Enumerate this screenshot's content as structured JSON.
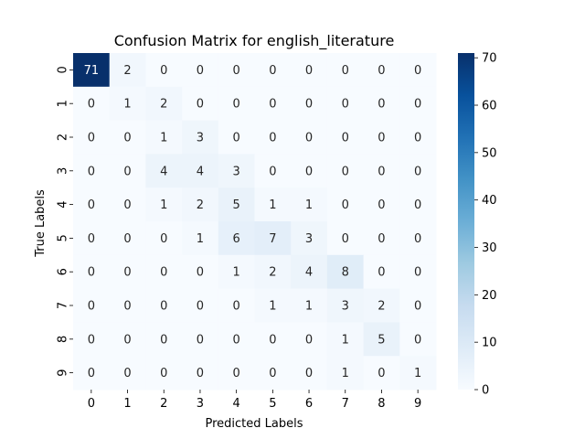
{
  "chart_data": {
    "type": "heatmap",
    "title": "Confusion Matrix for english_literature",
    "xlabel": "Predicted Labels",
    "ylabel": "True Labels",
    "x_categories": [
      "0",
      "1",
      "2",
      "3",
      "4",
      "5",
      "6",
      "7",
      "8",
      "9"
    ],
    "y_categories": [
      "0",
      "1",
      "2",
      "3",
      "4",
      "5",
      "6",
      "7",
      "8",
      "9"
    ],
    "values": [
      [
        71,
        2,
        0,
        0,
        0,
        0,
        0,
        0,
        0,
        0
      ],
      [
        0,
        1,
        2,
        0,
        0,
        0,
        0,
        0,
        0,
        0
      ],
      [
        0,
        0,
        1,
        3,
        0,
        0,
        0,
        0,
        0,
        0
      ],
      [
        0,
        0,
        4,
        4,
        3,
        0,
        0,
        0,
        0,
        0
      ],
      [
        0,
        0,
        1,
        2,
        5,
        1,
        1,
        0,
        0,
        0
      ],
      [
        0,
        0,
        0,
        1,
        6,
        7,
        3,
        0,
        0,
        0
      ],
      [
        0,
        0,
        0,
        0,
        1,
        2,
        4,
        8,
        0,
        0
      ],
      [
        0,
        0,
        0,
        0,
        0,
        1,
        1,
        3,
        2,
        0
      ],
      [
        0,
        0,
        0,
        0,
        0,
        0,
        0,
        1,
        5,
        0
      ],
      [
        0,
        0,
        0,
        0,
        0,
        0,
        0,
        1,
        0,
        1
      ]
    ],
    "colormap": "Blues",
    "color_range": [
      0,
      71
    ],
    "colorbar_ticks": [
      0,
      10,
      20,
      30,
      40,
      50,
      60,
      70
    ],
    "annotations": true,
    "legend": "colorbar-right",
    "grid": false
  }
}
